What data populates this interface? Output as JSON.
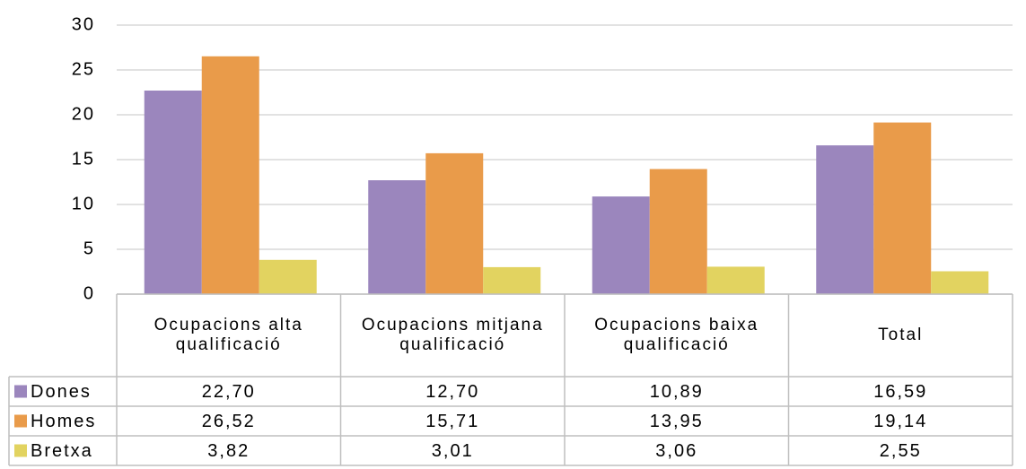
{
  "chart_data": {
    "type": "bar",
    "categories": [
      "Ocupacions alta qualificació",
      "Ocupacions mitjana qualificació",
      "Ocupacions baixa qualificació",
      "Total"
    ],
    "series": [
      {
        "name": "Dones",
        "color": "#9b86bd",
        "values": [
          22.7,
          12.7,
          10.89,
          16.59
        ],
        "value_labels": [
          "22,70",
          "12,70",
          "10,89",
          "16,59"
        ]
      },
      {
        "name": "Homes",
        "color": "#e99b4a",
        "values": [
          26.52,
          15.71,
          13.95,
          19.14
        ],
        "value_labels": [
          "26,52",
          "15,71",
          "13,95",
          "19,14"
        ]
      },
      {
        "name": "Bretxa",
        "color": "#e2d360",
        "values": [
          3.82,
          3.01,
          3.06,
          2.55
        ],
        "value_labels": [
          "3,82",
          "3,01",
          "3,06",
          "2,55"
        ]
      }
    ],
    "ylim": [
      0,
      30
    ],
    "yticks": [
      0,
      5,
      10,
      15,
      20,
      25,
      30
    ],
    "grid": true
  }
}
